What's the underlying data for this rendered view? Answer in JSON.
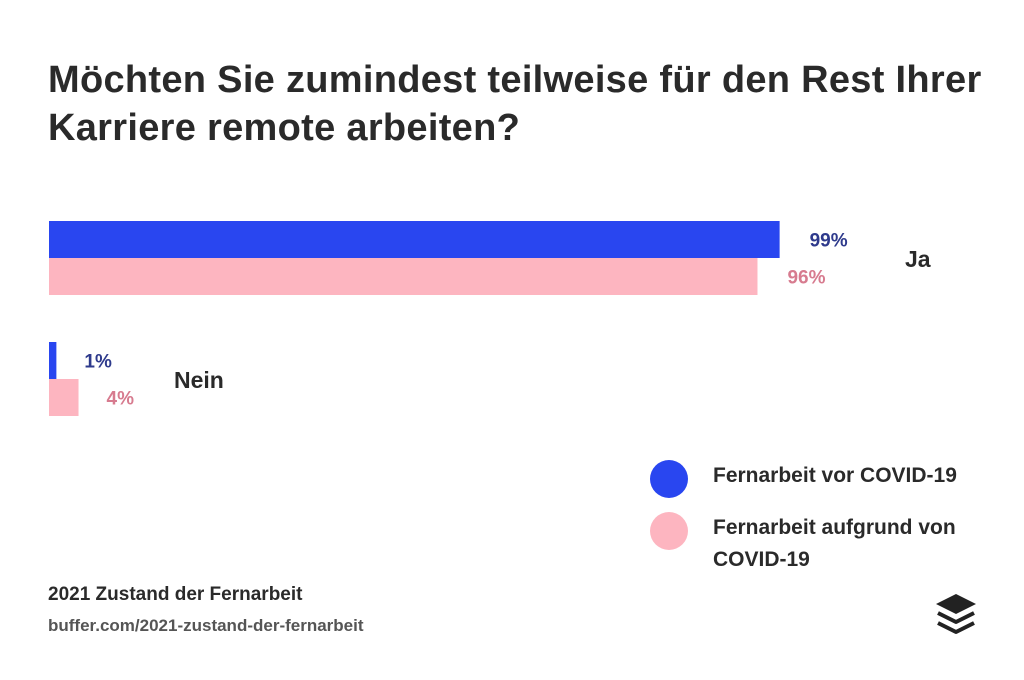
{
  "chart_data": {
    "type": "bar",
    "orientation": "horizontal",
    "title": "Möchten Sie zumindest teilweise für den Rest Ihrer Karriere remote arbeiten?",
    "categories": [
      "Ja",
      "Nein"
    ],
    "series": [
      {
        "name": "Fernarbeit vor COVID-19",
        "values": [
          99,
          1
        ],
        "labels": [
          "99%",
          "1%"
        ],
        "color": "#2946f0",
        "label_color": "#2e3a8c"
      },
      {
        "name": "Fernarbeit aufgrund von COVID-19",
        "values": [
          96,
          4
        ],
        "labels": [
          "96%",
          "4%"
        ],
        "color": "#fdb5c0",
        "label_color": "#d77b8f"
      }
    ],
    "xlim": [
      0,
      100
    ],
    "grid": false,
    "legend": "bottom-right"
  },
  "footer": {
    "source_title": "2021 Zustand der Fernarbeit",
    "source_url": "buffer.com/2021-zustand-der-fernarbeit",
    "logo_icon": "buffer-stack-icon"
  }
}
